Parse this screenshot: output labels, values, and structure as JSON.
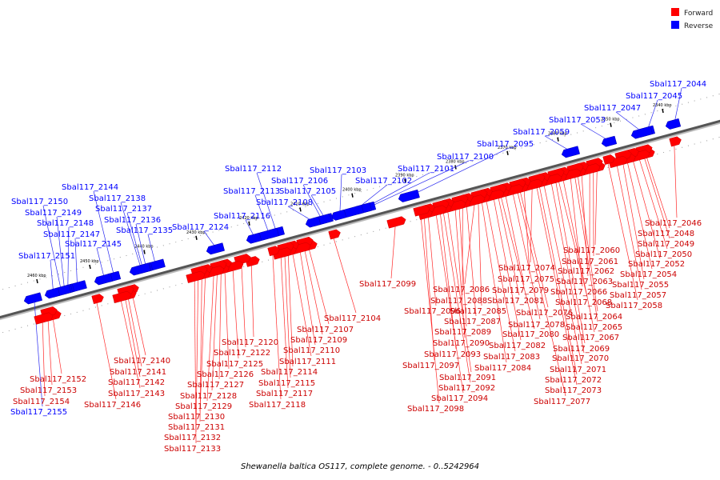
{
  "caption": "Shewanella baltica OS117, complete genome. - 0..5242964",
  "legend": [
    {
      "label": "Forward",
      "color": "#ff0000"
    },
    {
      "label": "Reverse",
      "color": "#0000ff"
    }
  ],
  "colors": {
    "forward": "#ff0000",
    "reverse": "#0000ff",
    "forward_line": "#ff2a2a",
    "reverse_line": "#2a2af0",
    "backbone": "#555555"
  },
  "kbp_ticks": [
    "2340 kbp",
    "2350 kbp",
    "2360 kbp",
    "2370 kbp",
    "2380 kbp",
    "2390 kbp",
    "2400 kbp",
    "2410 kbp",
    "2420 kbp",
    "2430 kbp",
    "2440 kbp",
    "2450 kbp",
    "2460 kbp"
  ],
  "reverse_genes": [
    "Sbal117_2044",
    "Sbal117_2045",
    "Sbal117_2047",
    "Sbal117_2053",
    "Sbal117_2059",
    "Sbal117_2095",
    "Sbal117_2100",
    "Sbal117_2101",
    "Sbal117_2102",
    "Sbal117_2103",
    "Sbal117_2105",
    "Sbal117_2106",
    "Sbal117_2108",
    "Sbal117_2112",
    "Sbal117_2113",
    "Sbal117_2116",
    "Sbal117_2124",
    "Sbal117_2135",
    "Sbal117_2136",
    "Sbal117_2137",
    "Sbal117_2138",
    "Sbal117_2144",
    "Sbal117_2145",
    "Sbal117_2147",
    "Sbal117_2148",
    "Sbal117_2149",
    "Sbal117_2150",
    "Sbal117_2151",
    "Sbal117_2155"
  ],
  "forward_genes": [
    "Sbal117_2046",
    "Sbal117_2048",
    "Sbal117_2049",
    "Sbal117_2050",
    "Sbal117_2052",
    "Sbal117_2054",
    "Sbal117_2055",
    "Sbal117_2057",
    "Sbal117_2058",
    "Sbal117_2060",
    "Sbal117_2061",
    "Sbal117_2062",
    "Sbal117_2063",
    "Sbal117_2064",
    "Sbal117_2065",
    "Sbal117_2066",
    "Sbal117_2067",
    "Sbal117_2068",
    "Sbal117_2069",
    "Sbal117_2070",
    "Sbal117_2071",
    "Sbal117_2072",
    "Sbal117_2073",
    "Sbal117_2074",
    "Sbal117_2075",
    "Sbal117_2076",
    "Sbal117_2077",
    "Sbal117_2078",
    "Sbal117_2079",
    "Sbal117_2080",
    "Sbal117_2081",
    "Sbal117_2082",
    "Sbal117_2083",
    "Sbal117_2084",
    "Sbal117_2085",
    "Sbal117_2086",
    "Sbal117_2087",
    "Sbal117_2088",
    "Sbal117_2089",
    "Sbal117_2090",
    "Sbal117_2091",
    "Sbal117_2092",
    "Sbal117_2093",
    "Sbal117_2094",
    "Sbal117_2096",
    "Sbal117_2097",
    "Sbal117_2098",
    "Sbal117_2099",
    "Sbal117_2104",
    "Sbal117_2107",
    "Sbal117_2109",
    "Sbal117_2110",
    "Sbal117_2111",
    "Sbal117_2114",
    "Sbal117_2115",
    "Sbal117_2117",
    "Sbal117_2118",
    "Sbal117_2120",
    "Sbal117_2122",
    "Sbal117_2125",
    "Sbal117_2126",
    "Sbal117_2127",
    "Sbal117_2128",
    "Sbal117_2129",
    "Sbal117_2130",
    "Sbal117_2131",
    "Sbal117_2132",
    "Sbal117_2133",
    "Sbal117_2140",
    "Sbal117_2141",
    "Sbal117_2142",
    "Sbal117_2143",
    "Sbal117_2146",
    "Sbal117_2152",
    "Sbal117_2153",
    "Sbal117_2154"
  ]
}
